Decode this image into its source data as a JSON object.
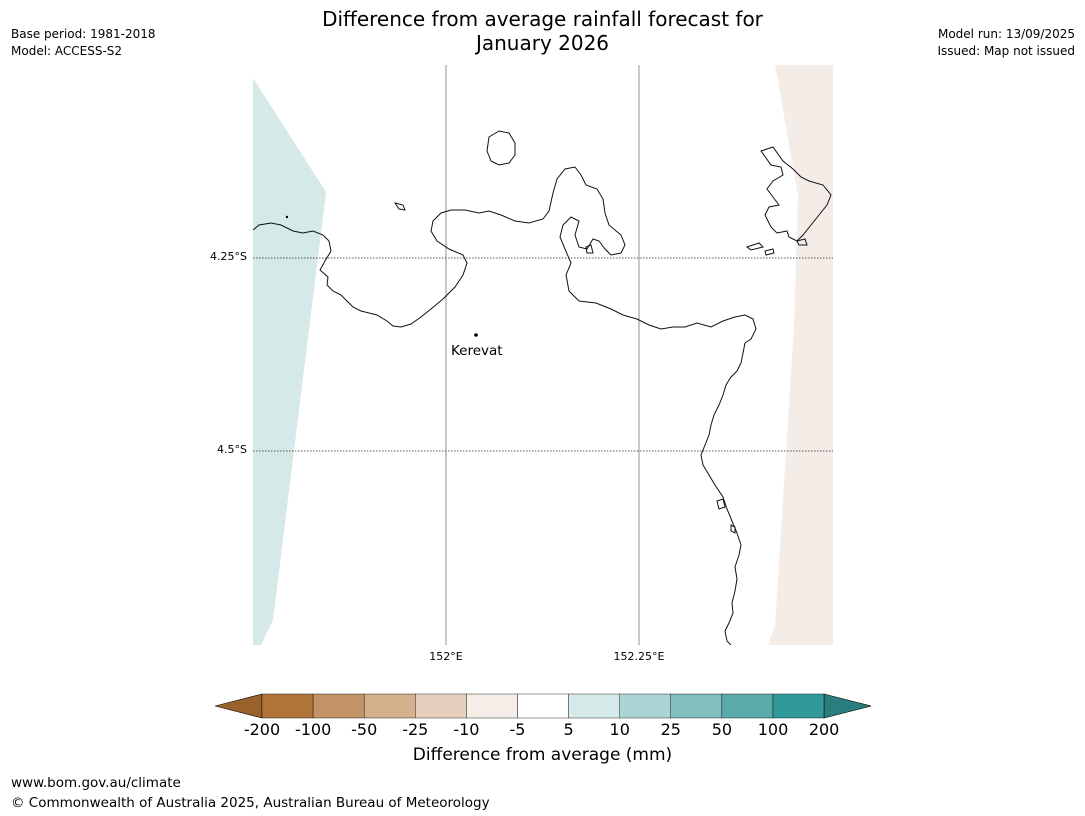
{
  "title": {
    "line1": "Difference from average rainfall forecast for",
    "line2": "January 2026"
  },
  "meta_left": {
    "base_period": "Base period: 1981-2018",
    "model": "Model: ACCESS-S2"
  },
  "meta_right": {
    "model_run": "Model run: 13/09/2025",
    "issued": "Issued: Map not issued"
  },
  "map": {
    "place_label": "Kerevat",
    "lat_labels": [
      "4.25°S",
      "4.5°S"
    ],
    "lon_labels": [
      "152°E",
      "152.25°E"
    ],
    "colors": {
      "left_region": "#d5e9e8",
      "right_region": "#f4ede7",
      "coastline": "#000000",
      "gridline": "#555555"
    }
  },
  "colorbar": {
    "ticks": [
      "-200",
      "-100",
      "-50",
      "-25",
      "-10",
      "-5",
      "5",
      "10",
      "25",
      "50",
      "100",
      "200"
    ],
    "colors": [
      "#9a622b",
      "#b07439",
      "#c29366",
      "#d4b08d",
      "#e5d0bd",
      "#f5ede7",
      "#ffffff",
      "#d5e9e8",
      "#abd5d4",
      "#82bfbc",
      "#59aaa8",
      "#32999a",
      "#2b7e7e"
    ],
    "label": "Difference from average (mm)"
  },
  "footer": {
    "url": "www.bom.gov.au/climate",
    "copyright": "© Commonwealth of Australia 2025, Australian Bureau of Meteorology"
  }
}
